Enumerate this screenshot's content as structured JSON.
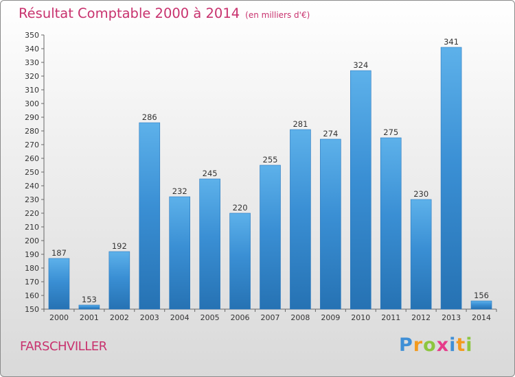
{
  "title": "Résultat Comptable 2000 à 2014",
  "subtitle": "(en milliers d'€)",
  "location": "FARSCHVILLER",
  "logo": {
    "letters": [
      "P",
      "r",
      "o",
      "x",
      "i",
      "t",
      "i"
    ],
    "colors": [
      "#3f8fd6",
      "#f39a1e",
      "#8cc63f",
      "#e63c8a",
      "#3f8fd6",
      "#f39a1e",
      "#8cc63f"
    ]
  },
  "colors": {
    "accent": "#c8326e",
    "bar": "#3a8fd4",
    "bar_light": "#5db1ea",
    "bar_dark": "#2672b3"
  },
  "chart_data": {
    "type": "bar",
    "categories": [
      "2000",
      "2001",
      "2002",
      "2003",
      "2004",
      "2005",
      "2006",
      "2007",
      "2008",
      "2009",
      "2010",
      "2011",
      "2012",
      "2013",
      "2014"
    ],
    "values": [
      187,
      153,
      192,
      286,
      232,
      245,
      220,
      255,
      281,
      274,
      324,
      275,
      230,
      341,
      156
    ],
    "title": "Résultat Comptable 2000 à 2014",
    "xlabel": "",
    "ylabel": "",
    "ylim": [
      150,
      350
    ],
    "ytick_step": 10,
    "grid": false,
    "data_labels": true
  }
}
